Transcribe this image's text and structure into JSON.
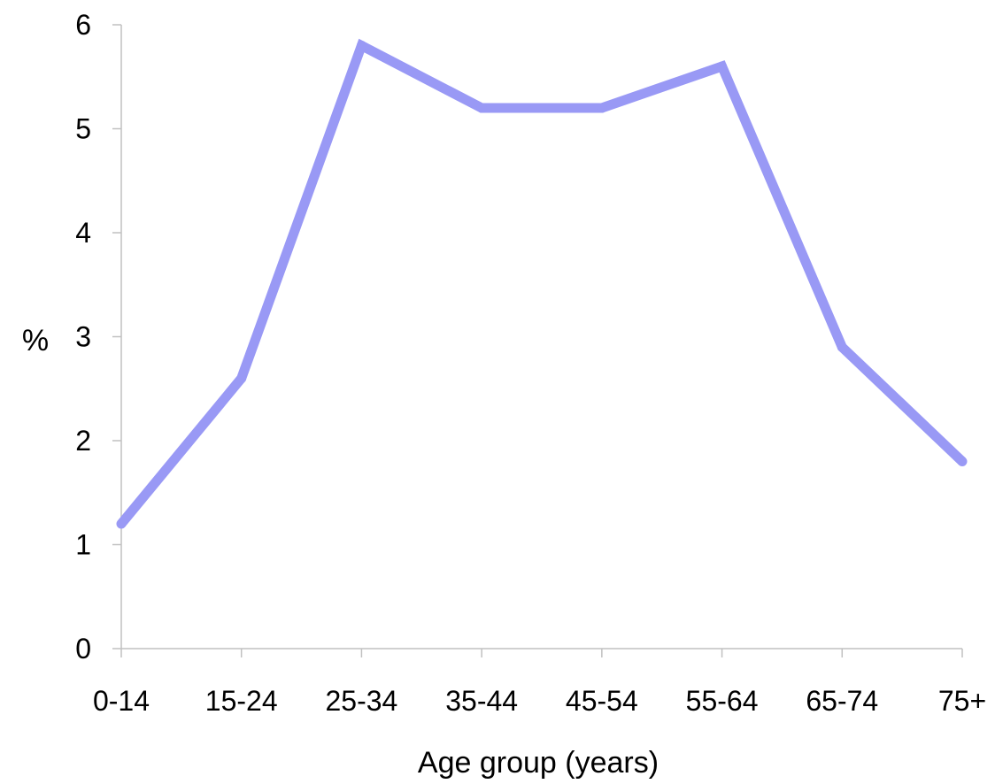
{
  "chart_data": {
    "type": "line",
    "categories": [
      "0-14",
      "15-24",
      "25-34",
      "35-44",
      "45-54",
      "55-64",
      "65-74",
      "75+"
    ],
    "series": [
      {
        "values": [
          1.2,
          2.6,
          5.8,
          5.2,
          5.2,
          5.6,
          2.9,
          1.8
        ],
        "color": "#9999f5"
      }
    ],
    "xlabel": "Age group (years)",
    "ylabel": "%",
    "ylim": [
      0,
      6
    ],
    "yticks": [
      0,
      1,
      2,
      3,
      4,
      5,
      6
    ],
    "grid": false,
    "legend": "none"
  }
}
